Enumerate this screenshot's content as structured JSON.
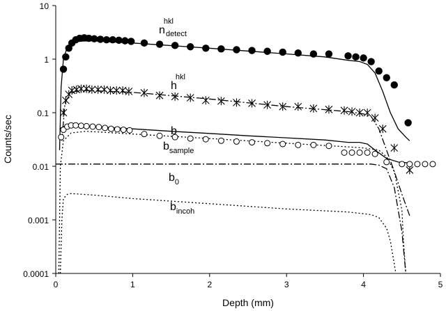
{
  "chart_data": {
    "type": "scatter",
    "xlabel": "Depth (mm)",
    "ylabel": "Counts/sec",
    "xlim": [
      0,
      5
    ],
    "ylim": [
      0.0001,
      10
    ],
    "yscale": "log",
    "x_ticks": [
      "0",
      "1",
      "2",
      "3",
      "4",
      "5"
    ],
    "y_ticks": [
      "0.0001",
      "0.001",
      "0.01",
      "0.1",
      "1",
      "10"
    ],
    "grid": false,
    "legend": "none",
    "annotations": [
      {
        "id": "ndetect",
        "base": "n",
        "sub": "detect",
        "sup": "hkl"
      },
      {
        "id": "hhkl",
        "base": "h",
        "sub": "",
        "sup": "hkl"
      },
      {
        "id": "b",
        "base": "b",
        "sub": "",
        "sup": ""
      },
      {
        "id": "bsample",
        "base": "b",
        "sub": "sample",
        "sup": ""
      },
      {
        "id": "b0",
        "base": "b",
        "sub": "0",
        "sup": ""
      },
      {
        "id": "bincoh",
        "base": "b",
        "sub": "incoh",
        "sup": ""
      }
    ],
    "series": [
      {
        "label_id": "ndetect",
        "marker": "filled-circle",
        "x": [
          0.1,
          0.13,
          0.17,
          0.21,
          0.26,
          0.31,
          0.37,
          0.43,
          0.5,
          0.58,
          0.66,
          0.74,
          0.82,
          0.9,
          0.98,
          1.15,
          1.35,
          1.55,
          1.75,
          1.95,
          2.15,
          2.35,
          2.55,
          2.75,
          2.95,
          3.15,
          3.35,
          3.55,
          3.8,
          3.9,
          4.0,
          4.1,
          4.2,
          4.3,
          4.4,
          4.58
        ],
        "y": [
          0.65,
          1.1,
          1.6,
          2.0,
          2.3,
          2.45,
          2.5,
          2.45,
          2.4,
          2.35,
          2.3,
          2.3,
          2.25,
          2.2,
          2.15,
          2.0,
          1.9,
          1.8,
          1.7,
          1.6,
          1.55,
          1.5,
          1.45,
          1.4,
          1.35,
          1.3,
          1.25,
          1.25,
          1.15,
          1.1,
          1.05,
          0.9,
          0.6,
          0.45,
          0.33,
          0.065
        ]
      },
      {
        "label_id": "ndetect",
        "marker": "solid-line",
        "x": [
          0.05,
          0.07,
          0.1,
          0.15,
          0.2,
          0.3,
          0.45,
          1,
          2,
          3,
          3.5,
          3.8,
          3.95,
          4.05,
          4.15,
          4.25,
          4.35,
          4.45,
          4.55,
          4.6
        ],
        "y": [
          0.02,
          0.3,
          1.0,
          1.7,
          2.0,
          2.15,
          2.2,
          2.0,
          1.6,
          1.25,
          1.1,
          0.95,
          0.9,
          0.8,
          0.55,
          0.25,
          0.1,
          0.05,
          0.035,
          0.03
        ]
      },
      {
        "label_id": "hhkl",
        "marker": "asterisk",
        "x": [
          0.1,
          0.13,
          0.17,
          0.21,
          0.27,
          0.33,
          0.4,
          0.47,
          0.55,
          0.63,
          0.71,
          0.79,
          0.87,
          0.95,
          1.15,
          1.35,
          1.55,
          1.75,
          1.95,
          2.15,
          2.35,
          2.55,
          2.75,
          2.95,
          3.15,
          3.35,
          3.55,
          3.75,
          3.85,
          3.95,
          4.05,
          4.15,
          4.25,
          4.4,
          4.6
        ],
        "y": [
          0.1,
          0.17,
          0.22,
          0.26,
          0.27,
          0.28,
          0.28,
          0.27,
          0.27,
          0.27,
          0.26,
          0.26,
          0.26,
          0.25,
          0.235,
          0.21,
          0.2,
          0.19,
          0.17,
          0.165,
          0.155,
          0.15,
          0.14,
          0.13,
          0.13,
          0.12,
          0.115,
          0.11,
          0.105,
          0.1,
          0.1,
          0.08,
          0.05,
          0.022,
          0.0085
        ]
      },
      {
        "label_id": "hhkl",
        "marker": "dash-dot-line",
        "x": [
          0.08,
          0.12,
          0.18,
          0.25,
          0.4,
          1,
          2,
          3,
          3.8,
          4.0,
          4.1,
          4.2,
          4.3,
          4.4,
          4.5,
          4.6
        ],
        "y": [
          0.03,
          0.15,
          0.22,
          0.25,
          0.26,
          0.24,
          0.18,
          0.13,
          0.105,
          0.095,
          0.085,
          0.05,
          0.02,
          0.008,
          0.003,
          0.0012
        ]
      },
      {
        "label_id": "b",
        "marker": "open-circle",
        "x": [
          0.07,
          0.1,
          0.15,
          0.2,
          0.26,
          0.33,
          0.4,
          0.48,
          0.56,
          0.64,
          0.72,
          0.8,
          0.88,
          0.96,
          1.15,
          1.35,
          1.55,
          1.75,
          1.95,
          2.15,
          2.35,
          2.55,
          2.75,
          2.95,
          3.15,
          3.35,
          3.55,
          3.75,
          3.85,
          3.95,
          4.05,
          4.15,
          4.3,
          4.5,
          4.6,
          4.7,
          4.8,
          4.9
        ],
        "y": [
          0.035,
          0.048,
          0.055,
          0.058,
          0.058,
          0.057,
          0.056,
          0.055,
          0.054,
          0.052,
          0.05,
          0.049,
          0.048,
          0.047,
          0.04,
          0.037,
          0.035,
          0.033,
          0.032,
          0.03,
          0.029,
          0.028,
          0.027,
          0.026,
          0.025,
          0.025,
          0.024,
          0.018,
          0.018,
          0.018,
          0.018,
          0.017,
          0.012,
          0.011,
          0.011,
          0.011,
          0.011,
          0.011
        ]
      },
      {
        "label_id": "b",
        "marker": "solid-line",
        "x": [
          0.05,
          0.1,
          0.2,
          0.5,
          1,
          1.5,
          2,
          2.5,
          3,
          3.5,
          3.8,
          3.95,
          4.05,
          4.15,
          4.3,
          4.45,
          4.6
        ],
        "y": [
          0.05,
          0.055,
          0.056,
          0.055,
          0.05,
          0.045,
          0.041,
          0.037,
          0.034,
          0.031,
          0.028,
          0.028,
          0.026,
          0.02,
          0.014,
          0.012,
          0.0115
        ]
      },
      {
        "label_id": "bsample",
        "marker": "dotted-line",
        "x": [
          0.04,
          0.06,
          0.1,
          0.2,
          0.4,
          1,
          2,
          3,
          3.8,
          4.0,
          4.2,
          4.3,
          4.4,
          4.5,
          4.52,
          4.55
        ],
        "y": [
          0.0001,
          0.01,
          0.03,
          0.042,
          0.045,
          0.04,
          0.033,
          0.027,
          0.023,
          0.022,
          0.02,
          0.015,
          0.008,
          0.0015,
          0.0004,
          0.0001
        ]
      },
      {
        "label_id": "b0",
        "marker": "dash-dot-line",
        "x": [
          0,
          0.5,
          1,
          2,
          3,
          4,
          4.1,
          4.2,
          4.3,
          4.4,
          4.5,
          4.55
        ],
        "y": [
          0.011,
          0.011,
          0.011,
          0.011,
          0.011,
          0.011,
          0.011,
          0.0105,
          0.009,
          0.004,
          0.0006,
          0.0001
        ]
      },
      {
        "label_id": "bincoh",
        "marker": "dotted-line",
        "x": [
          0.06,
          0.08,
          0.1,
          0.15,
          0.2,
          0.5,
          1,
          2,
          3,
          3.8,
          4.0,
          4.1,
          4.2,
          4.3,
          4.35,
          4.4,
          4.42
        ],
        "y": [
          0.0001,
          0.001,
          0.0025,
          0.003,
          0.0031,
          0.0029,
          0.0025,
          0.002,
          0.0016,
          0.0014,
          0.0013,
          0.00125,
          0.0011,
          0.0007,
          0.0004,
          0.00015,
          0.0001
        ]
      }
    ]
  }
}
